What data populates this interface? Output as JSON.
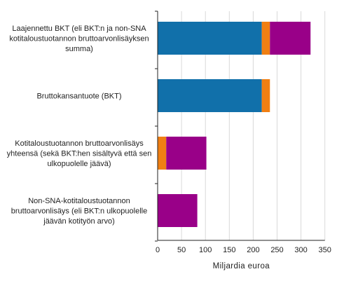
{
  "chart_data": {
    "type": "bar",
    "orientation": "horizontal",
    "stacked": true,
    "categories": [
      [
        "Laajennettu BKT (eli BKT:n ja non-SNA",
        "kotitaloustuotannon bruttoarvonlisäyksen",
        "summa)"
      ],
      [
        "Bruttokansantuote (BKT)"
      ],
      [
        "Kotitaloustuotannon bruttoarvonlisäys",
        "yhteensä (sekä BKT:hen sisältyvä että sen",
        "ulkopuolelle jäävä)"
      ],
      [
        "Non-SNA-kotitaloustuotannon",
        "bruttoarvonlisäys (eli BKT:n ulkopuolelle",
        "jäävän kotityön arvo)"
      ]
    ],
    "series": [
      {
        "color": "#1170aa",
        "values": [
          218,
          218,
          0,
          0
        ]
      },
      {
        "color": "#f07f13",
        "values": [
          17,
          17,
          18,
          0
        ]
      },
      {
        "color": "#990088",
        "values": [
          85,
          0,
          84,
          83
        ]
      }
    ],
    "xlabel": "Miljardia euroa",
    "xlim": [
      0,
      350
    ],
    "xticks": [
      0,
      50,
      100,
      150,
      200,
      250,
      300,
      350
    ],
    "grid": "vertical",
    "legend": "none"
  }
}
